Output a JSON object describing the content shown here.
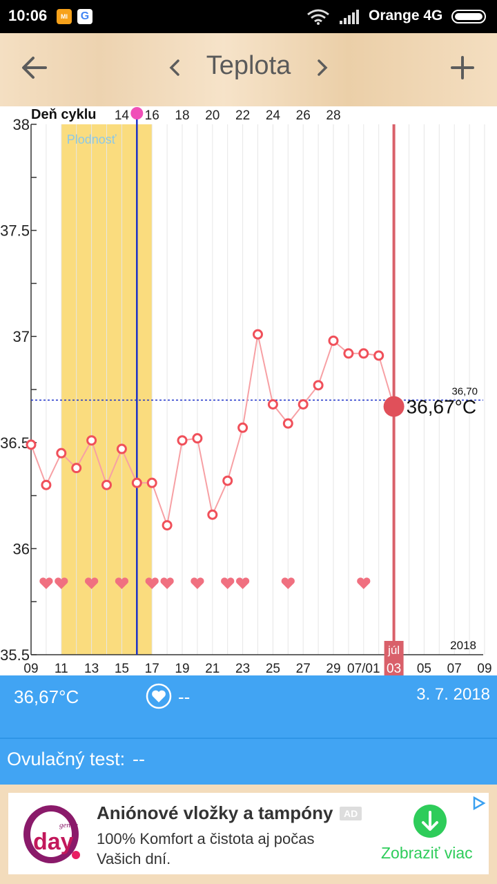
{
  "status_bar": {
    "time": "10:06",
    "carrier": "Orange 4G",
    "app_icons": [
      "mi-icon",
      "google-icon"
    ]
  },
  "header": {
    "title": "Teplota",
    "back_icon": "arrow-left-icon",
    "prev_icon": "chevron-left-icon",
    "next_icon": "chevron-right-icon",
    "add_icon": "plus-icon"
  },
  "chart_data": {
    "type": "line",
    "cycle_label": "Deň cyklu",
    "cycle_ticks": [
      "14",
      "16",
      "18",
      "20",
      "22",
      "24",
      "26",
      "28"
    ],
    "fertile_label": "Plodnosť",
    "y_ticks": [
      "38",
      "37.5",
      "37",
      "36.5",
      "36",
      "35.5"
    ],
    "ylim": [
      35.5,
      38
    ],
    "x_tick_labels": [
      "09",
      "11",
      "13",
      "15",
      "17",
      "19",
      "21",
      "23",
      "25",
      "27",
      "29",
      "07/01",
      "",
      "05",
      "07",
      "09"
    ],
    "selected_month": "júl",
    "selected_day": "03",
    "year": "2018",
    "coverline_label": "36,70",
    "coverline": 36.7,
    "current_label": "36,67°C",
    "series": [
      {
        "values": [
          36.49,
          36.3,
          36.45,
          36.38,
          36.51,
          36.3,
          36.47,
          36.31,
          36.31,
          36.11,
          36.51,
          36.52,
          36.16,
          36.32,
          36.57,
          37.01,
          36.68,
          36.59,
          36.68,
          36.77,
          36.98,
          36.92,
          36.92,
          36.91,
          36.67
        ]
      }
    ],
    "fertile_range": [
      2,
      8
    ],
    "ovulation_index": 7,
    "selected_index": 24,
    "heart_indices": [
      1,
      2,
      4,
      6,
      8,
      9,
      11,
      13,
      14,
      17,
      22
    ]
  },
  "info": {
    "temperature": "36,67°C",
    "love_value": "--",
    "date": "3. 7. 2018",
    "ovulation_label": "Ovulačný test:",
    "ovulation_value": "--",
    "heart_icon": "heart-icon"
  },
  "ad": {
    "title": "Aniónové vložky a tampóny",
    "badge": "AD",
    "text": "100% Komfort a čistota aj počas Vašich dní.",
    "cta": "Zobraziť viac",
    "logo_top": "gentle",
    "logo_main": "day",
    "logo_mark": "®"
  }
}
